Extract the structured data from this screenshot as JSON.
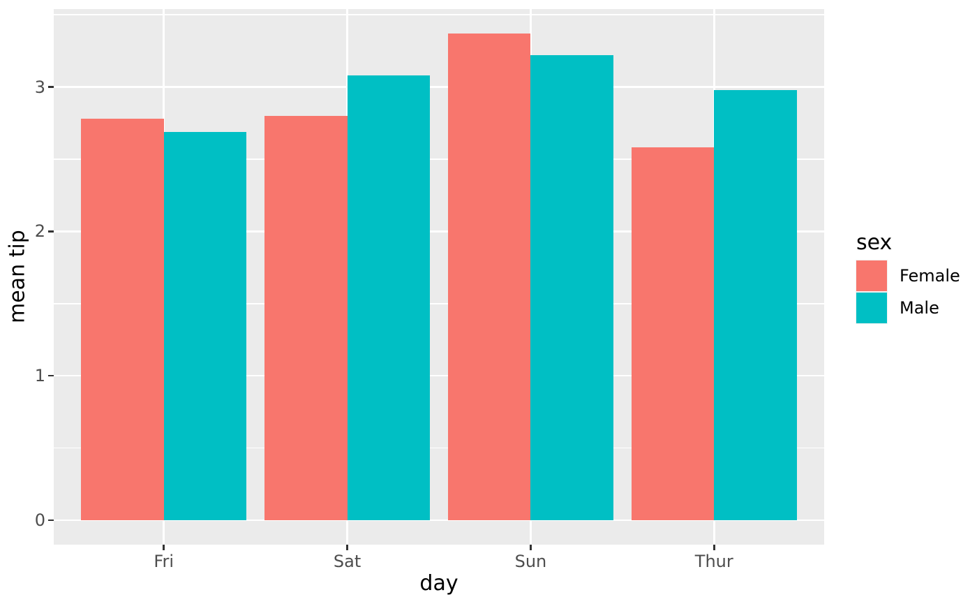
{
  "chart_data": {
    "type": "bar",
    "bar_mode": "grouped",
    "title": "",
    "xlabel": "day",
    "ylabel": "mean tip",
    "categories": [
      "Fri",
      "Sat",
      "Sun",
      "Thur"
    ],
    "series": [
      {
        "name": "Female",
        "color": "#F8766D",
        "values": [
          2.78,
          2.8,
          3.37,
          2.58
        ]
      },
      {
        "name": "Male",
        "color": "#00BFC4",
        "values": [
          2.69,
          3.08,
          3.22,
          2.98
        ]
      }
    ],
    "ylim": [
      -0.17,
      3.54
    ],
    "yticks": [
      0,
      1,
      2,
      3
    ],
    "ytick_labels": [
      "0",
      "1",
      "2",
      "3"
    ],
    "yminor": [
      0.5,
      1.5,
      2.5,
      3.5
    ],
    "grid": "on",
    "legend": {
      "title": "sex",
      "position": "right",
      "entries": [
        "Female",
        "Male"
      ]
    },
    "colors": {
      "figure_bg": "#FFFFFF",
      "panel_bg": "#EBEBEB",
      "grid": "#FFFFFF",
      "tick_mark": "#333333",
      "tick_label": "#4D4D4D",
      "axis_title": "#000000"
    }
  }
}
